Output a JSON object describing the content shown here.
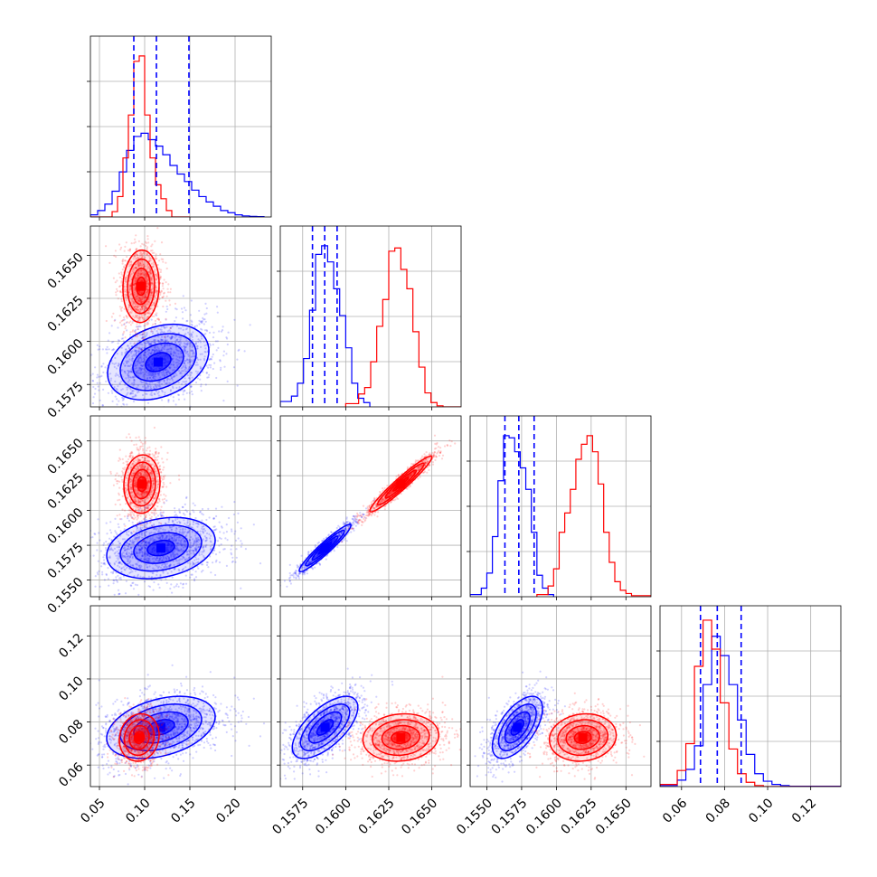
{
  "chart_data": {
    "type": "corner",
    "title": "",
    "grid": true,
    "series": [
      {
        "color": "#0000ff"
      },
      {
        "color": "#ff0000"
      }
    ],
    "parameters": [
      {
        "range": [
          0.04,
          0.24
        ],
        "ticks": [
          0.05,
          0.1,
          0.15,
          0.2
        ],
        "tick_labels": [
          "0.05",
          "0.10",
          "0.15",
          "0.20"
        ]
      },
      {
        "range": [
          0.1562,
          0.1667
        ],
        "ticks": [
          0.1575,
          0.16,
          0.1625,
          0.165
        ],
        "tick_labels": [
          "0.1575",
          "0.1600",
          "0.1625",
          "0.1650"
        ]
      },
      {
        "range": [
          0.1538,
          0.1668
        ],
        "ticks": [
          0.155,
          0.1575,
          0.16,
          0.1625,
          0.165
        ],
        "tick_labels": [
          "0.1550",
          "0.1575",
          "0.1600",
          "0.1625",
          "0.1650"
        ]
      },
      {
        "range": [
          0.05,
          0.134
        ],
        "ticks": [
          0.06,
          0.08,
          0.1,
          0.12
        ],
        "tick_labels": [
          "0.06",
          "0.08",
          "0.10",
          "0.12"
        ]
      }
    ],
    "histograms": [
      {
        "param": 0,
        "y_max": 160,
        "series": [
          {
            "color": "#0000ff",
            "bins": [
              0.04,
              0.048,
              0.056,
              0.064,
              0.072,
              0.08,
              0.088,
              0.096,
              0.104,
              0.112,
              0.12,
              0.128,
              0.136,
              0.144,
              0.152,
              0.16,
              0.168,
              0.176,
              0.184,
              0.192,
              0.2,
              0.208,
              0.216,
              0.224,
              0.232
            ],
            "counts": [
              2,
              6,
              12,
              24,
              42,
              62,
              75,
              78,
              72,
              66,
              58,
              48,
              40,
              33,
              25,
              19,
              14,
              10,
              6,
              4,
              2,
              1,
              0.5,
              0.3
            ]
          },
          {
            "color": "#ff0000",
            "bins": [
              0.04,
              0.064,
              0.07,
              0.076,
              0.082,
              0.088,
              0.094,
              0.1,
              0.106,
              0.112,
              0.118,
              0.124,
              0.13,
              0.15
            ],
            "counts": [
              0,
              5,
              19,
              55,
              95,
              145,
              150,
              95,
              55,
              30,
              17,
              6,
              0
            ]
          }
        ],
        "quantiles": [
          0.088,
          0.113,
          0.149
        ]
      },
      {
        "param": 1,
        "y_max": 160,
        "series": [
          {
            "color": "#0000ff",
            "bins": [
              0.1562,
              0.15685,
              0.1572,
              0.15755,
              0.1579,
              0.15825,
              0.1586,
              0.15895,
              0.1593,
              0.15965,
              0.16,
              0.16035,
              0.1607,
              0.16105,
              0.1614
            ],
            "counts": [
              5,
              10,
              22,
              45,
              90,
              142,
              150,
              135,
              110,
              85,
              55,
              22,
              8,
              4
            ]
          },
          {
            "color": "#ff0000",
            "bins": [
              0.16,
              0.16075,
              0.1611,
              0.16145,
              0.1618,
              0.16215,
              0.1625,
              0.16285,
              0.1632,
              0.16355,
              0.1639,
              0.16425,
              0.1646,
              0.16495,
              0.1653,
              0.16565,
              0.1667
            ],
            "counts": [
              3,
              12,
              18,
              42,
              75,
              100,
              145,
              148,
              128,
              110,
              70,
              37,
              13,
              4,
              1,
              0
            ]
          }
        ],
        "quantiles": [
          0.15807,
          0.15878,
          0.1595
        ]
      },
      {
        "param": 2,
        "y_max": 160,
        "series": [
          {
            "color": "#0000ff",
            "bins": [
              0.1538,
              0.1546,
              0.155,
              0.1554,
              0.1558,
              0.1562,
              0.1566,
              0.157,
              0.1574,
              0.1578,
              0.1582,
              0.1586,
              0.159,
              0.1594,
              0.1598
            ],
            "counts": [
              2,
              8,
              22,
              56,
              108,
              150,
              148,
              135,
              120,
              100,
              60,
              20,
              8,
              2
            ]
          },
          {
            "color": "#ff0000",
            "bins": [
              0.1586,
              0.1594,
              0.1598,
              0.1602,
              0.1606,
              0.161,
              0.1614,
              0.1618,
              0.1622,
              0.1626,
              0.163,
              0.1634,
              0.1638,
              0.1642,
              0.1646,
              0.165,
              0.1654,
              0.1668
            ],
            "counts": [
              2,
              10,
              26,
              60,
              78,
              100,
              128,
              142,
              150,
              135,
              105,
              60,
              32,
              14,
              6,
              3,
              1
            ]
          }
        ],
        "quantiles": [
          0.1563,
          0.1573,
          0.1584
        ]
      },
      {
        "param": 3,
        "y_max": 160,
        "series": [
          {
            "color": "#0000ff",
            "bins": [
              0.05,
              0.058,
              0.062,
              0.066,
              0.07,
              0.074,
              0.078,
              0.082,
              0.086,
              0.09,
              0.094,
              0.098,
              0.102,
              0.106,
              0.11,
              0.134
            ],
            "counts": [
              1,
              6,
              16,
              38,
              95,
              140,
              122,
              95,
              62,
              30,
              12,
              5,
              2,
              1,
              0.3
            ]
          },
          {
            "color": "#ff0000",
            "bins": [
              0.05,
              0.058,
              0.062,
              0.066,
              0.07,
              0.074,
              0.078,
              0.082,
              0.086,
              0.09,
              0.094,
              0.098,
              0.134
            ],
            "counts": [
              2,
              15,
              40,
              112,
              155,
              128,
              78,
              35,
              12,
              4,
              1,
              0
            ]
          }
        ],
        "quantiles": [
          0.0688,
          0.0766,
          0.0877
        ]
      }
    ],
    "joint_panels": [
      {
        "x_param": 0,
        "y_param": 1,
        "series": [
          {
            "color": "#0000ff",
            "mean": [
              0.115,
              0.1588
            ],
            "sd": [
              0.028,
              0.0011
            ],
            "rho": 0.3,
            "n": 1400
          },
          {
            "color": "#ff0000",
            "mean": [
              0.096,
              0.1632
            ],
            "sd": [
              0.01,
              0.00105
            ],
            "rho": 0.05,
            "n": 1100
          }
        ]
      },
      {
        "x_param": 0,
        "y_param": 2,
        "series": [
          {
            "color": "#0000ff",
            "mean": [
              0.118,
              0.1573
            ],
            "sd": [
              0.03,
              0.0011
            ],
            "rho": 0.25,
            "n": 1400
          },
          {
            "color": "#ff0000",
            "mean": [
              0.097,
              0.1619
            ],
            "sd": [
              0.01,
              0.00105
            ],
            "rho": 0.05,
            "n": 1100
          }
        ]
      },
      {
        "x_param": 1,
        "y_param": 2,
        "series": [
          {
            "color": "#0000ff",
            "mean": [
              0.1588,
              0.1573
            ],
            "sd": [
              0.00075,
              0.00085
            ],
            "rho": 0.95,
            "n": 900
          },
          {
            "color": "#ff0000",
            "mean": [
              0.1632,
              0.1619
            ],
            "sd": [
              0.0009,
              0.001
            ],
            "rho": 0.96,
            "n": 1000
          }
        ]
      },
      {
        "x_param": 0,
        "y_param": 3,
        "series": [
          {
            "color": "#0000ff",
            "mean": [
              0.118,
              0.0775
            ],
            "sd": [
              0.03,
              0.0072
            ],
            "rho": 0.35,
            "n": 1400
          },
          {
            "color": "#ff0000",
            "mean": [
              0.094,
              0.0728
            ],
            "sd": [
              0.011,
              0.0055
            ],
            "rho": 0.1,
            "n": 1000
          }
        ]
      },
      {
        "x_param": 1,
        "y_param": 3,
        "series": [
          {
            "color": "#0000ff",
            "mean": [
              0.1588,
              0.0775
            ],
            "sd": [
              0.00095,
              0.0072
            ],
            "rho": 0.65,
            "n": 1200
          },
          {
            "color": "#ff0000",
            "mean": [
              0.1632,
              0.0728
            ],
            "sd": [
              0.0011,
              0.0055
            ],
            "rho": 0.1,
            "n": 1100
          }
        ]
      },
      {
        "x_param": 2,
        "y_param": 3,
        "series": [
          {
            "color": "#0000ff",
            "mean": [
              0.1572,
              0.0775
            ],
            "sd": [
              0.0009,
              0.0072
            ],
            "rho": 0.6,
            "n": 1200
          },
          {
            "color": "#ff0000",
            "mean": [
              0.1619,
              0.0728
            ],
            "sd": [
              0.0012,
              0.0055
            ],
            "rho": 0.1,
            "n": 1100
          }
        ]
      }
    ]
  }
}
